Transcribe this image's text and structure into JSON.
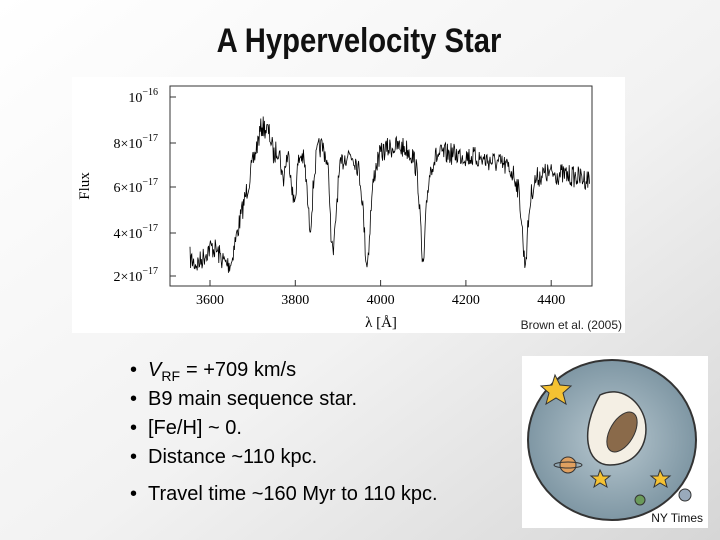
{
  "title": "A Hypervelocity Star",
  "figure": {
    "y_axis_label": "Flux",
    "y_ticks": [
      {
        "base": "10",
        "exponent": "−16"
      },
      {
        "base": "8×10",
        "exponent": "−17"
      },
      {
        "base": "6×10",
        "exponent": "−17"
      },
      {
        "base": "4×10",
        "exponent": "−17"
      },
      {
        "base": "2×10",
        "exponent": "−17"
      }
    ],
    "x_axis_label": "λ [Å]",
    "x_ticks": [
      "3600",
      "3800",
      "4000",
      "4200",
      "4400"
    ],
    "credit": "Brown et al. (2005)"
  },
  "bullets": [
    {
      "symbol": "V",
      "subscript": "RF",
      "text": "= +709 km/s"
    },
    {
      "text": "B9 main sequence star."
    },
    {
      "text": "[Fe/H] ~ 0."
    },
    {
      "text": "Distance ~110 kpc."
    },
    {
      "text": "Travel time ~160 Myr to 110 kpc."
    }
  ],
  "image_credit": "NY Times"
}
